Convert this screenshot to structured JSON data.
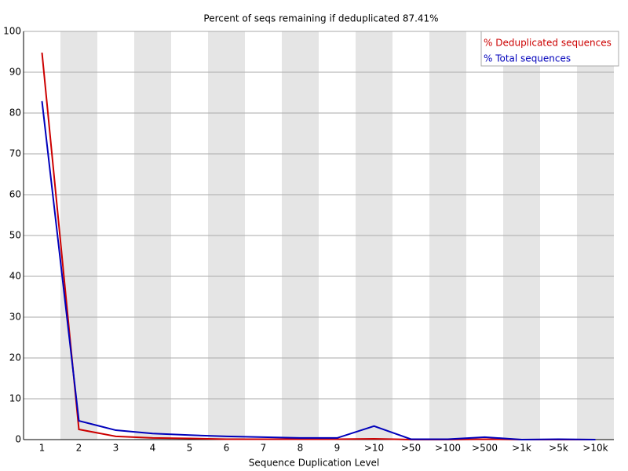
{
  "chart_data": {
    "type": "line",
    "title": "Percent of seqs remaining if deduplicated 87.41%",
    "x_label": "Sequence Duplication Level",
    "categories": [
      "1",
      "2",
      "3",
      "4",
      "5",
      "6",
      "7",
      "8",
      "9",
      ">10",
      ">50",
      ">100",
      ">500",
      ">1k",
      ">5k",
      ">10k"
    ],
    "series": [
      {
        "name": "% Deduplicated sequences",
        "color": "#cc0000",
        "values": [
          94.8,
          2.5,
          0.8,
          0.4,
          0.3,
          0.1,
          0.1,
          0.1,
          0.1,
          0.2,
          0,
          0,
          0.1,
          0,
          0,
          0
        ]
      },
      {
        "name": "% Total sequences",
        "color": "#0000bb",
        "values": [
          82.9,
          4.6,
          2.3,
          1.5,
          1.1,
          0.8,
          0.6,
          0.4,
          0.4,
          3.3,
          0.1,
          0.1,
          0.6,
          0,
          0.1,
          0
        ]
      }
    ],
    "ylim": [
      0,
      100
    ],
    "yticks": [
      0,
      10,
      20,
      30,
      40,
      50,
      60,
      70,
      80,
      90,
      100
    ],
    "grid": true,
    "legend": "upper right"
  }
}
